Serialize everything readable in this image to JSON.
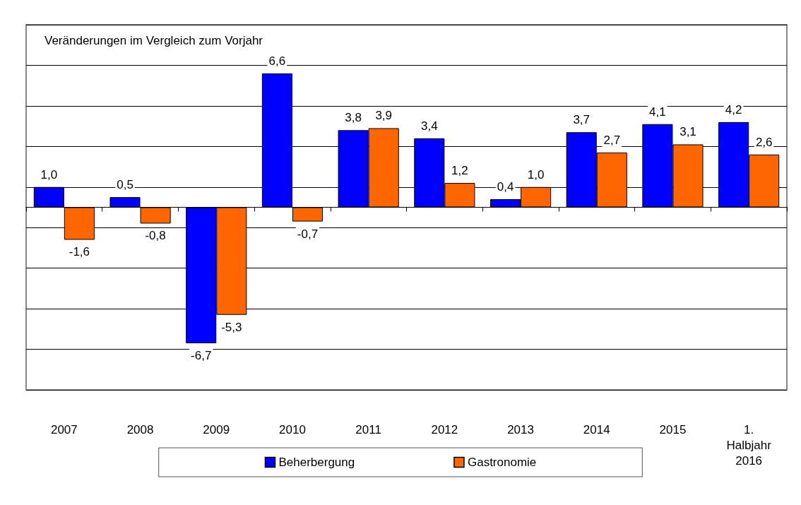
{
  "chart_data": {
    "type": "bar",
    "annotations": [
      "Veränderungen im Vergleich zum Vorjahr"
    ],
    "categories": [
      "2007",
      "2008",
      "2009",
      "2010",
      "2011",
      "2012",
      "2013",
      "2014",
      "2015",
      "1.\nHalbjahr\n2016"
    ],
    "series": [
      {
        "name": "Beherbergung",
        "color": "#0000ff",
        "values": [
          1.0,
          0.5,
          -6.7,
          6.6,
          3.8,
          3.4,
          0.4,
          3.7,
          4.1,
          4.2
        ],
        "value_labels": [
          "1,0",
          "0,5",
          "-6,7",
          "6,6",
          "3,8",
          "3,4",
          "0,4",
          "3,7",
          "4,1",
          "4,2"
        ]
      },
      {
        "name": "Gastronomie",
        "color": "#ff6600",
        "values": [
          -1.6,
          -0.8,
          -5.3,
          -0.7,
          3.9,
          1.2,
          1.0,
          2.7,
          3.1,
          2.6
        ],
        "value_labels": [
          "-1,6",
          "-0,8",
          "-5,3",
          "-0,7",
          "3,9",
          "1,2",
          "1,0",
          "2,7",
          "3,1",
          "2,6"
        ]
      }
    ],
    "tick_labels": "x",
    "grid": "y",
    "legend": "bottom"
  }
}
